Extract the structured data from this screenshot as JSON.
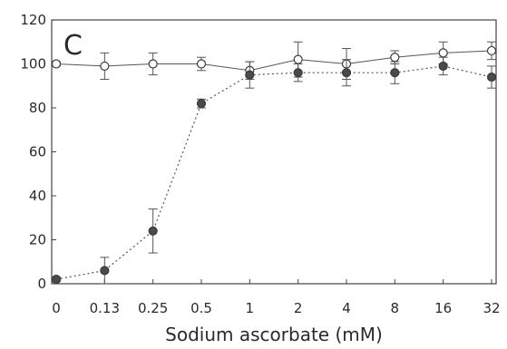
{
  "chart_data": {
    "type": "line",
    "panel_label": "C",
    "xlabel": "Sodium ascorbate (mM)",
    "ylabel": "",
    "categories": [
      "0",
      "0.13",
      "0.25",
      "0.5",
      "1",
      "2",
      "4",
      "8",
      "16",
      "32"
    ],
    "ylim": [
      0,
      120
    ],
    "yticks": [
      "0",
      "20",
      "40",
      "60",
      "80",
      "100",
      "120"
    ],
    "grid": false,
    "series": [
      {
        "marker": "open-circle",
        "line": "solid",
        "color": "#555555",
        "values": [
          100,
          99,
          100,
          100,
          97,
          102,
          100,
          103,
          105,
          106
        ],
        "errors": [
          1,
          6,
          5,
          3,
          4,
          8,
          7,
          3,
          5,
          4
        ]
      },
      {
        "marker": "filled-circle",
        "line": "dotted",
        "color": "#555555",
        "values": [
          2,
          6,
          24,
          82,
          95,
          96,
          96,
          96,
          99,
          94
        ],
        "errors": [
          1,
          6,
          10,
          2,
          6,
          4,
          6,
          5,
          4,
          5
        ]
      }
    ]
  }
}
